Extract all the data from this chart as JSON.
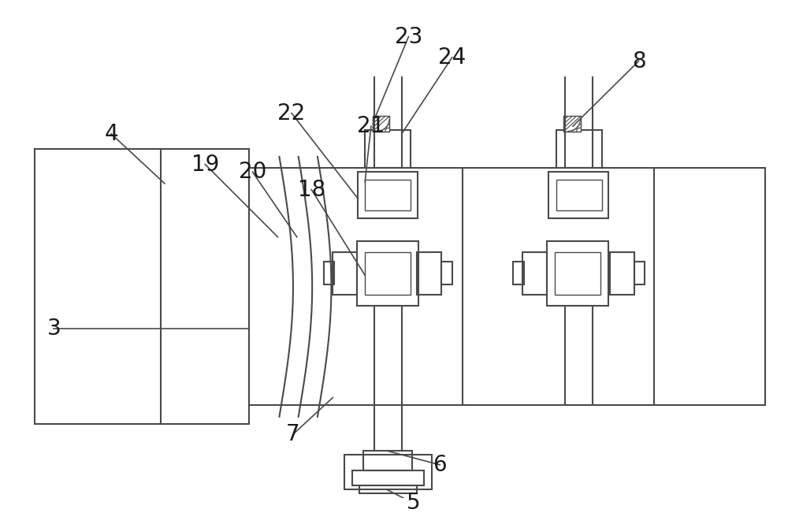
{
  "bg_color": "#ffffff",
  "line_color": "#4a4a4a",
  "lw": 1.5,
  "lw_thin": 1.0
}
